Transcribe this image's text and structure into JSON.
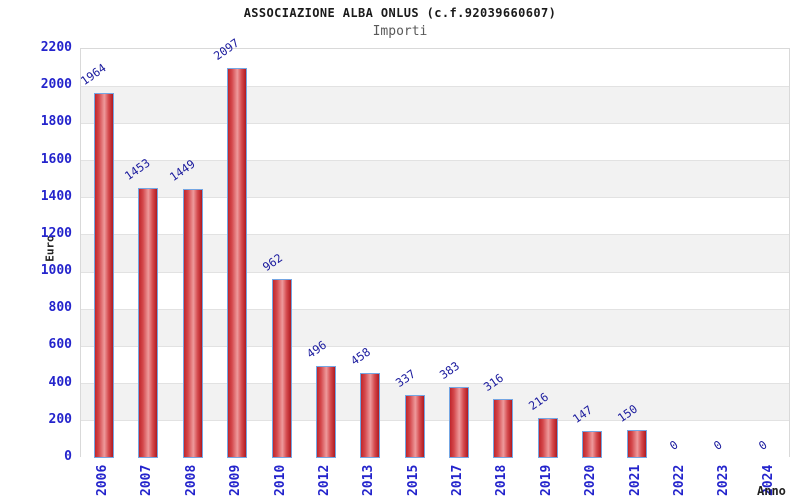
{
  "chart_data": {
    "type": "bar",
    "title": "ASSOCIAZIONE ALBA ONLUS (c.f.92039660607)",
    "subtitle": "Importi",
    "xlabel": "Anno",
    "ylabel": "Euro",
    "categories": [
      "2006",
      "2007",
      "2008",
      "2009",
      "2010",
      "2012",
      "2013",
      "2015",
      "2017",
      "2018",
      "2019",
      "2020",
      "2021",
      "2022",
      "2023",
      "2024"
    ],
    "values": [
      1964,
      1453,
      1449,
      2097,
      962,
      496,
      458,
      337,
      383,
      316,
      216,
      147,
      150,
      0,
      0,
      0
    ],
    "ylim": [
      0,
      2200
    ],
    "ytick_step": 200,
    "ytick_labels": [
      "2200",
      "2000",
      "1800",
      "1600",
      "1400",
      "1200",
      "1000",
      "800",
      "600",
      "400",
      "200",
      "0"
    ],
    "grid": "horizontal-bands",
    "legend": "none",
    "colors": {
      "bar_gradient_edge": "#c0262c",
      "bar_gradient_mid": "#ee9a9c",
      "bar_border": "#74a6e3",
      "tick_text": "#2424cc",
      "value_text": "#1b1b9e",
      "title_text": "#1a1a1a",
      "subtitle_text": "#5a5a5a",
      "band_gray": "#f2f2f2",
      "band_white": "#ffffff",
      "gridline": "#e2e2e2",
      "plot_border": "#d9d9d9"
    }
  }
}
